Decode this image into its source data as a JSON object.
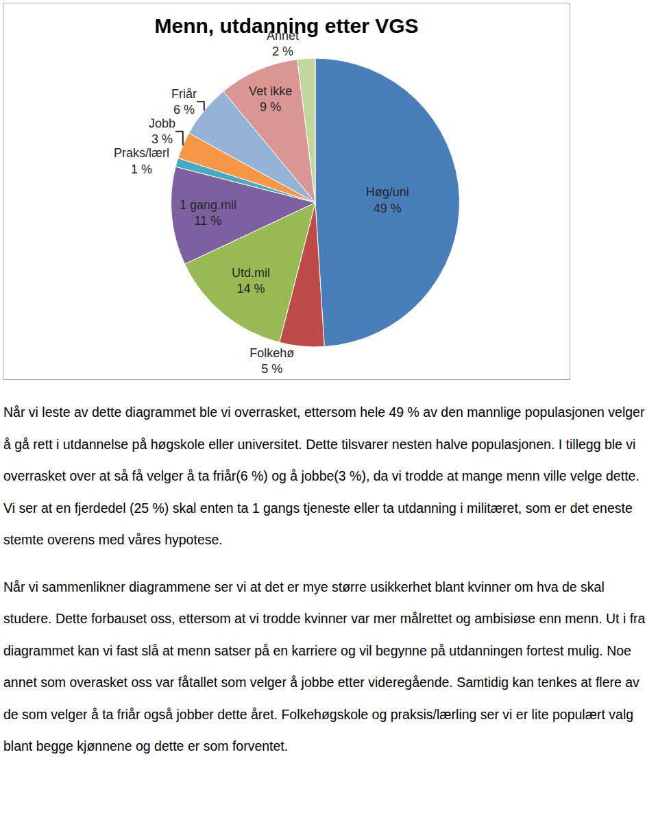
{
  "chart_data": {
    "type": "pie",
    "title": "Menn, utdanning etter VGS",
    "categories": [
      "Høg/uni",
      "Folkehø",
      "Utd.mil",
      "1 gang.mil",
      "Praks/lærl",
      "Jobb",
      "Friår",
      "Vet ikke",
      "Annet"
    ],
    "values": [
      49,
      5,
      14,
      11,
      1,
      3,
      6,
      9,
      2
    ],
    "value_labels": [
      "49 %",
      "5 %",
      "14 %",
      "11 %",
      "1 %",
      "3 %",
      "6 %",
      "9 %",
      "2 %"
    ],
    "colors": [
      "#4a7ebb",
      "#be4b48",
      "#98b954",
      "#7d60a0",
      "#46aac5",
      "#f79646",
      "#95b3d7",
      "#d99694",
      "#c3d69b"
    ],
    "data_labels": true
  },
  "paragraphs": [
    "Når vi leste av dette diagrammet ble vi overrasket, ettersom hele 49 % av den mannlige populasjonen velger å gå rett i utdannelse på høgskole eller universitet. Dette tilsvarer nesten halve populasjonen. I tillegg ble vi overrasket over at så få velger å ta friår(6 %) og å jobbe(3 %), da vi trodde at mange menn ville velge dette. Vi ser at en fjerdedel (25 %) skal enten ta 1 gangs tjeneste eller ta utdanning i militæret, som er det eneste stemte overens med våres hypotese.",
    "Når vi sammenlikner diagrammene ser vi at det er mye større usikkerhet blant kvinner om hva de skal studere. Dette forbauset oss, ettersom at vi trodde kvinner var mer målrettet og ambisiøse enn menn. Ut i fra diagrammet kan vi fast slå at menn satser på en karriere og vil begynne på utdanningen fortest mulig.  Noe annet som overasket oss var fåtallet som velger å jobbe etter videregående. Samtidig kan tenkes at flere av de som velger å ta friår også jobber dette året. Folkehøgskole og praksis/lærling ser vi er lite populært valg blant begge kjønnene og dette er som forventet."
  ]
}
